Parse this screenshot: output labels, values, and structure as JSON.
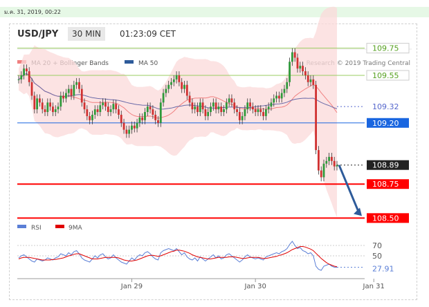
{
  "timestamp": "ม.ค. 31, 2019, 00:22",
  "header": {
    "pair": "USD/JPY",
    "timeframe": "30 MIN",
    "time": "01:23:09 CET"
  },
  "legend": {
    "items": [
      "MA 20 + Bollinger Bands",
      "MA 50"
    ],
    "colors": [
      "#f08080",
      "#2e5b9a"
    ]
  },
  "credit": "Research © 2019 Trading Central",
  "rsi_legend": {
    "items": [
      "RSI",
      "9MA"
    ],
    "colors": [
      "#5b7fd6",
      "#e00000"
    ]
  },
  "chart_data": [
    {
      "type": "candlestick",
      "ylim": [
        108.4,
        109.85
      ],
      "x_ticks": [
        "Jan 29",
        "Jan 30",
        "Jan 31"
      ],
      "x_tick_index": [
        43,
        90,
        135
      ],
      "levels": [
        {
          "value": 109.75,
          "label": "109.75",
          "color": "#9acd60",
          "kind": "resistance"
        },
        {
          "value": 109.55,
          "label": "109.55",
          "color": "#9acd60",
          "kind": "resistance"
        },
        {
          "value": 109.32,
          "label": "109.32",
          "color": "#5566cc",
          "kind": "ma"
        },
        {
          "value": 109.2,
          "label": "109.20",
          "color": "#1a66e0",
          "kind": "pivot"
        },
        {
          "value": 108.89,
          "label": "108.89",
          "color": "#222222",
          "kind": "last"
        },
        {
          "value": 108.75,
          "label": "108.75",
          "color": "#ff0000",
          "kind": "support"
        },
        {
          "value": 108.5,
          "label": "108.50",
          "color": "#ff0000",
          "kind": "support"
        }
      ],
      "close": [
        109.52,
        109.55,
        109.6,
        109.58,
        109.5,
        109.4,
        109.3,
        109.38,
        109.35,
        109.3,
        109.28,
        109.35,
        109.32,
        109.28,
        109.3,
        109.32,
        109.4,
        109.38,
        109.42,
        109.45,
        109.4,
        109.48,
        109.5,
        109.45,
        109.35,
        109.3,
        109.25,
        109.22,
        109.26,
        109.3,
        109.28,
        109.33,
        109.35,
        109.32,
        109.28,
        109.3,
        109.34,
        109.3,
        109.26,
        109.2,
        109.15,
        109.12,
        109.15,
        109.18,
        109.16,
        109.2,
        109.24,
        109.22,
        109.28,
        109.32,
        109.3,
        109.26,
        109.22,
        109.2,
        109.35,
        109.42,
        109.45,
        109.48,
        109.5,
        109.52,
        109.55,
        109.5,
        109.45,
        109.48,
        109.4,
        109.35,
        109.3,
        109.32,
        109.28,
        109.35,
        109.3,
        109.25,
        109.28,
        109.32,
        109.35,
        109.3,
        109.32,
        109.28,
        109.3,
        109.35,
        109.38,
        109.35,
        109.3,
        109.28,
        109.22,
        109.25,
        109.3,
        109.35,
        109.32,
        109.3,
        109.28,
        109.3,
        109.28,
        109.25,
        109.3,
        109.32,
        109.35,
        109.38,
        109.4,
        109.38,
        109.42,
        109.45,
        109.5,
        109.65,
        109.72,
        109.68,
        109.6,
        109.62,
        109.58,
        109.55,
        109.5,
        109.52,
        109.48,
        109.0,
        108.85,
        108.8,
        108.9,
        108.92,
        108.95,
        108.92,
        108.88,
        108.89
      ],
      "arrow": {
        "from_value": 108.89,
        "to_value": 108.5,
        "direction": "down"
      }
    },
    {
      "type": "line",
      "title": "RSI",
      "ylim": [
        10,
        90
      ],
      "y_ticks": [
        70,
        50
      ],
      "last_label": "27.91",
      "series": [
        {
          "name": "RSI",
          "color": "#5b7fd6",
          "values": [
            46,
            50,
            52,
            48,
            44,
            40,
            38,
            44,
            42,
            40,
            42,
            46,
            44,
            42,
            46,
            48,
            54,
            52,
            50,
            56,
            52,
            58,
            60,
            54,
            46,
            42,
            40,
            38,
            44,
            50,
            46,
            52,
            54,
            48,
            44,
            46,
            52,
            46,
            42,
            38,
            36,
            34,
            40,
            46,
            42,
            48,
            52,
            50,
            56,
            58,
            54,
            48,
            44,
            42,
            56,
            60,
            62,
            64,
            62,
            60,
            64,
            58,
            52,
            56,
            48,
            44,
            42,
            46,
            40,
            48,
            44,
            40,
            44,
            48,
            52,
            46,
            50,
            44,
            46,
            52,
            54,
            50,
            46,
            42,
            38,
            42,
            48,
            52,
            48,
            46,
            44,
            46,
            44,
            42,
            48,
            50,
            52,
            54,
            56,
            54,
            58,
            60,
            64,
            72,
            78,
            70,
            64,
            66,
            60,
            58,
            54,
            56,
            50,
            30,
            24,
            22,
            30,
            32,
            34,
            30,
            28,
            28
          ]
        },
        {
          "name": "9MA",
          "color": "#e00000",
          "values": [
            44,
            46,
            47,
            47,
            47,
            46,
            45,
            44,
            43,
            42,
            42,
            42,
            42,
            43,
            43,
            44,
            45,
            46,
            48,
            50,
            51,
            53,
            54,
            54,
            52,
            50,
            48,
            46,
            44,
            44,
            44,
            45,
            46,
            47,
            47,
            47,
            47,
            47,
            46,
            44,
            42,
            41,
            40,
            40,
            41,
            42,
            44,
            46,
            48,
            50,
            51,
            51,
            50,
            49,
            50,
            52,
            54,
            56,
            58,
            59,
            61,
            61,
            60,
            59,
            57,
            55,
            52,
            50,
            48,
            47,
            46,
            45,
            44,
            44,
            45,
            46,
            47,
            47,
            47,
            47,
            48,
            48,
            48,
            47,
            46,
            45,
            45,
            46,
            47,
            47,
            47,
            47,
            46,
            45,
            45,
            46,
            47,
            48,
            49,
            51,
            52,
            54,
            56,
            59,
            62,
            64,
            66,
            68,
            68,
            67,
            65,
            63,
            60,
            55,
            50,
            45,
            41,
            37,
            34,
            32,
            30,
            29
          ]
        }
      ]
    }
  ]
}
